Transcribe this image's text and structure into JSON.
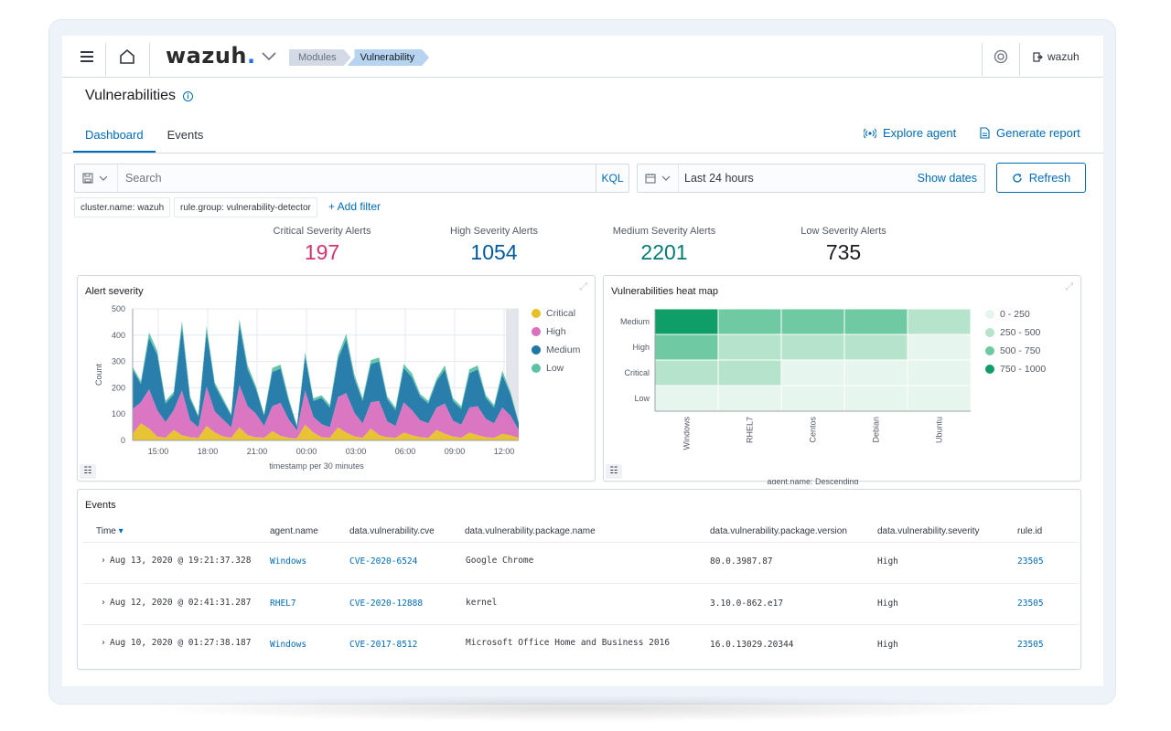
{
  "header": {
    "logo_text": "wazuh",
    "logo_dot": ".",
    "breadcrumbs": [
      "Modules",
      "Vulnerability"
    ],
    "user": "wazuh"
  },
  "page": {
    "title": "Vulnerabilities",
    "tabs": [
      "Dashboard",
      "Events"
    ],
    "explore_agent": "Explore agent",
    "generate_report": "Generate report"
  },
  "search": {
    "placeholder": "Search",
    "kql": "KQL",
    "date_range": "Last 24 hours",
    "show_dates": "Show dates",
    "refresh": "Refresh",
    "filters": [
      "cluster.name: wazuh",
      "rule.group: vulnerability-detector"
    ],
    "add_filter": "+ Add filter"
  },
  "metrics": [
    {
      "label": "Critical Severity Alerts",
      "value": "197",
      "color": "#d6336c"
    },
    {
      "label": "High Severity Alerts",
      "value": "1054",
      "color": "#005a9e"
    },
    {
      "label": "Medium Severity Alerts",
      "value": "2201",
      "color": "#017d73"
    },
    {
      "label": "Low Severity Alerts",
      "value": "735",
      "color": "#1a1c21"
    }
  ],
  "chart_data": [
    {
      "type": "area",
      "title": "Alert severity",
      "xlabel": "timestamp per 30 minutes",
      "ylabel": "Count",
      "ylim": [
        0,
        500
      ],
      "yticks": [
        "0",
        "100",
        "200",
        "300",
        "400",
        "500"
      ],
      "xticks": [
        "15:00",
        "18:00",
        "21:00",
        "00:00",
        "03:00",
        "06:00",
        "09:00",
        "12:00"
      ],
      "legend": [
        "Critical",
        "High",
        "Medium",
        "Low"
      ],
      "colors": [
        "#e7c029",
        "#d96fbf",
        "#1f77a8",
        "#5cc2a5"
      ],
      "series": [
        {
          "name": "Critical",
          "values": [
            25,
            65,
            45,
            15,
            10,
            40,
            20,
            12,
            10,
            55,
            30,
            15,
            10,
            50,
            20,
            12,
            10,
            35,
            18,
            10,
            8,
            60,
            30,
            12,
            10,
            50,
            30,
            15,
            10,
            45,
            20,
            12,
            10,
            30,
            20,
            12,
            10,
            40,
            25,
            15,
            10,
            30,
            20,
            12,
            10,
            25,
            20,
            10
          ]
        },
        {
          "name": "High",
          "values": [
            95,
            80,
            150,
            100,
            60,
            75,
            170,
            65,
            40,
            150,
            80,
            65,
            40,
            160,
            110,
            90,
            45,
            95,
            125,
            70,
            30,
            130,
            60,
            50,
            40,
            115,
            150,
            90,
            55,
            100,
            130,
            60,
            45,
            115,
            95,
            65,
            55,
            85,
            115,
            60,
            50,
            95,
            110,
            70,
            55,
            100,
            75,
            30
          ]
        },
        {
          "name": "Medium",
          "values": [
            150,
            70,
            195,
            210,
            70,
            60,
            240,
            80,
            40,
            210,
            100,
            70,
            45,
            230,
            140,
            95,
            40,
            130,
            130,
            70,
            15,
            130,
            60,
            100,
            75,
            145,
            205,
            130,
            85,
            145,
            150,
            85,
            60,
            130,
            125,
            90,
            75,
            100,
            130,
            75,
            60,
            130,
            140,
            80,
            60,
            125,
            80,
            25
          ]
        },
        {
          "name": "Low",
          "values": [
            10,
            10,
            20,
            15,
            10,
            10,
            25,
            10,
            5,
            20,
            10,
            10,
            5,
            20,
            15,
            10,
            5,
            15,
            15,
            10,
            5,
            15,
            10,
            10,
            10,
            15,
            20,
            15,
            10,
            15,
            15,
            10,
            10,
            15,
            15,
            10,
            10,
            10,
            15,
            10,
            10,
            15,
            15,
            10,
            10,
            15,
            10,
            5
          ]
        }
      ]
    },
    {
      "type": "heatmap",
      "title": "Vulnerabilities heat map",
      "xlabel": "agent.name: Descending",
      "x": [
        "Windows",
        "RHEL7",
        "Centos",
        "Debian",
        "Ubuntu"
      ],
      "y": [
        "Medium",
        "High",
        "Critical",
        "Low"
      ],
      "values": [
        [
          900,
          600,
          600,
          600,
          350
        ],
        [
          600,
          350,
          400,
          350,
          100
        ],
        [
          350,
          350,
          100,
          100,
          100
        ],
        [
          100,
          100,
          100,
          100,
          100
        ]
      ],
      "legend": [
        "0 - 250",
        "250 - 500",
        "500 - 750",
        "750 - 1000"
      ],
      "colors": [
        "#e6f5ee",
        "#b5e3cc",
        "#6fc9a2",
        "#0f9d68"
      ]
    }
  ],
  "events": {
    "title": "Events",
    "columns": [
      "Time",
      "agent.name",
      "data.vulnerability.cve",
      "data.vulnerability.package.name",
      "data.vulnerability.package.version",
      "data.vulnerability.severity",
      "rule.id"
    ],
    "rows": [
      {
        "time": "Aug 13, 2020 @ 19:21:37.328",
        "agent": "Windows",
        "cve": "CVE-2020-6524",
        "package": "Google Chrome",
        "version": "80.0.3987.87",
        "severity": "High",
        "rule": "23505"
      },
      {
        "time": "Aug 12, 2020 @ 02:41:31.287",
        "agent": "RHEL7",
        "cve": "CVE-2020-12888",
        "package": "kernel",
        "version": "3.10.0-862.e17",
        "severity": "High",
        "rule": "23505"
      },
      {
        "time": "Aug 10, 2020 @ 01:27:38.187",
        "agent": "Windows",
        "cve": "CVE-2017-8512",
        "package": "Microsoft Office Home and Business 2016",
        "version": "16.0.13029.20344",
        "severity": "High",
        "rule": "23505"
      }
    ]
  }
}
